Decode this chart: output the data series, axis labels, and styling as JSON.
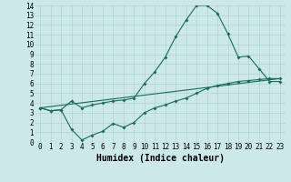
{
  "xlabel": "Humidex (Indice chaleur)",
  "bg_color": "#cce8e8",
  "grid_color": "#aacccc",
  "line_color": "#1a6b5a",
  "xlim": [
    -0.5,
    23.5
  ],
  "ylim": [
    0,
    14
  ],
  "xticks": [
    0,
    1,
    2,
    3,
    4,
    5,
    6,
    7,
    8,
    9,
    10,
    11,
    12,
    13,
    14,
    15,
    16,
    17,
    18,
    19,
    20,
    21,
    22,
    23
  ],
  "yticks": [
    0,
    1,
    2,
    3,
    4,
    5,
    6,
    7,
    8,
    9,
    10,
    11,
    12,
    13,
    14
  ],
  "line1_x": [
    0,
    1,
    2,
    3,
    4,
    5,
    6,
    7,
    8,
    9,
    10,
    11,
    12,
    13,
    14,
    15,
    16,
    17,
    18,
    19,
    20,
    21,
    22,
    23
  ],
  "line1_y": [
    3.5,
    3.2,
    3.3,
    4.2,
    3.5,
    3.8,
    4.0,
    4.2,
    4.3,
    4.5,
    6.0,
    7.2,
    8.7,
    10.8,
    12.5,
    14.0,
    14.0,
    13.2,
    11.1,
    8.7,
    8.8,
    7.5,
    6.2,
    6.2
  ],
  "line2_x": [
    0,
    1,
    2,
    3,
    4,
    5,
    6,
    7,
    8,
    9,
    10,
    11,
    12,
    13,
    14,
    15,
    16,
    17,
    18,
    19,
    20,
    21,
    22,
    23
  ],
  "line2_y": [
    3.5,
    3.2,
    3.3,
    1.3,
    0.2,
    0.7,
    1.1,
    1.9,
    1.5,
    2.0,
    3.0,
    3.5,
    3.8,
    4.2,
    4.5,
    5.0,
    5.5,
    5.8,
    6.0,
    6.2,
    6.3,
    6.4,
    6.5,
    6.5
  ],
  "line3_x": [
    0,
    23
  ],
  "line3_y": [
    3.5,
    6.5
  ],
  "markersize": 2.0,
  "linewidth": 0.8,
  "xlabel_fontsize": 7,
  "tick_fontsize": 5.5,
  "font_family": "monospace"
}
